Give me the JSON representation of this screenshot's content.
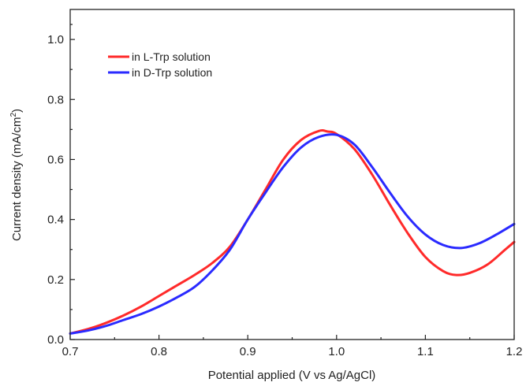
{
  "chart_data": {
    "type": "line",
    "xlabel": "Potential applied (V vs Ag/AgCl)",
    "ylabel": "Current density (mA/cm",
    "ylabel_superscript": "2",
    "ylabel_suffix": ")",
    "xlim": [
      0.7,
      1.2
    ],
    "ylim": [
      0.0,
      1.1
    ],
    "xticks": [
      0.7,
      0.8,
      0.9,
      1.0,
      1.1,
      1.2
    ],
    "xtick_labels": [
      "0.7",
      "0.8",
      "0.9",
      "1.0",
      "1.1",
      "1.2"
    ],
    "yticks": [
      0.0,
      0.2,
      0.4,
      0.6,
      0.8,
      1.0
    ],
    "ytick_labels": [
      "0.0",
      "0.2",
      "0.4",
      "0.6",
      "0.8",
      "1.0"
    ],
    "grid": false,
    "legend_position": "top-left",
    "series": [
      {
        "name": "in L-Trp solution",
        "color": "#ff2a2a",
        "x": [
          0.7,
          0.72,
          0.74,
          0.76,
          0.78,
          0.8,
          0.82,
          0.84,
          0.86,
          0.88,
          0.9,
          0.92,
          0.94,
          0.96,
          0.98,
          0.99,
          1.0,
          1.02,
          1.04,
          1.06,
          1.08,
          1.1,
          1.12,
          1.135,
          1.15,
          1.17,
          1.19,
          1.2
        ],
        "y": [
          0.02,
          0.035,
          0.055,
          0.08,
          0.11,
          0.145,
          0.18,
          0.215,
          0.255,
          0.31,
          0.4,
          0.5,
          0.6,
          0.665,
          0.695,
          0.693,
          0.685,
          0.635,
          0.55,
          0.45,
          0.355,
          0.275,
          0.228,
          0.215,
          0.222,
          0.25,
          0.3,
          0.325
        ]
      },
      {
        "name": "in D-Trp solution",
        "color": "#2a2aff",
        "x": [
          0.7,
          0.72,
          0.74,
          0.76,
          0.78,
          0.8,
          0.82,
          0.84,
          0.86,
          0.88,
          0.9,
          0.92,
          0.94,
          0.96,
          0.98,
          1.0,
          1.02,
          1.04,
          1.06,
          1.08,
          1.1,
          1.12,
          1.14,
          1.16,
          1.18,
          1.2
        ],
        "y": [
          0.02,
          0.03,
          0.045,
          0.065,
          0.085,
          0.11,
          0.14,
          0.175,
          0.23,
          0.3,
          0.4,
          0.49,
          0.575,
          0.64,
          0.675,
          0.682,
          0.65,
          0.575,
          0.49,
          0.41,
          0.35,
          0.315,
          0.305,
          0.32,
          0.35,
          0.385
        ]
      }
    ]
  }
}
